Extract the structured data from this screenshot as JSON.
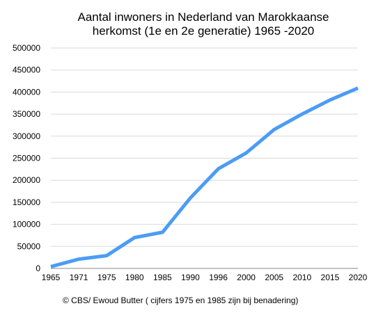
{
  "chart_data": {
    "type": "line",
    "title_lines": [
      "Aantal inwoners in Nederland van Marokkaanse",
      "herkomst (1e en 2e generatie) 1965 -2020"
    ],
    "xlabel": "",
    "ylabel": "",
    "categories": [
      "1965",
      "1971",
      "1975",
      "1980",
      "1985",
      "1990",
      "1996",
      "2000",
      "2005",
      "2010",
      "2015",
      "2020"
    ],
    "series": [
      {
        "values": [
          4000,
          21000,
          29000,
          70000,
          82000,
          160000,
          226000,
          262000,
          315000,
          350000,
          382000,
          409000
        ],
        "color": "#4b9cf5"
      }
    ],
    "y_ticks": [
      "0",
      "50000",
      "100000",
      "150000",
      "200000",
      "250000",
      "300000",
      "350000",
      "400000",
      "450000",
      "500000"
    ],
    "ylim": [
      0,
      500000
    ],
    "grid": true,
    "legend": "none",
    "caption": "© CBS/ Ewoud Butter ( cijfers 1975 en 1985 zijn bij benadering)"
  }
}
